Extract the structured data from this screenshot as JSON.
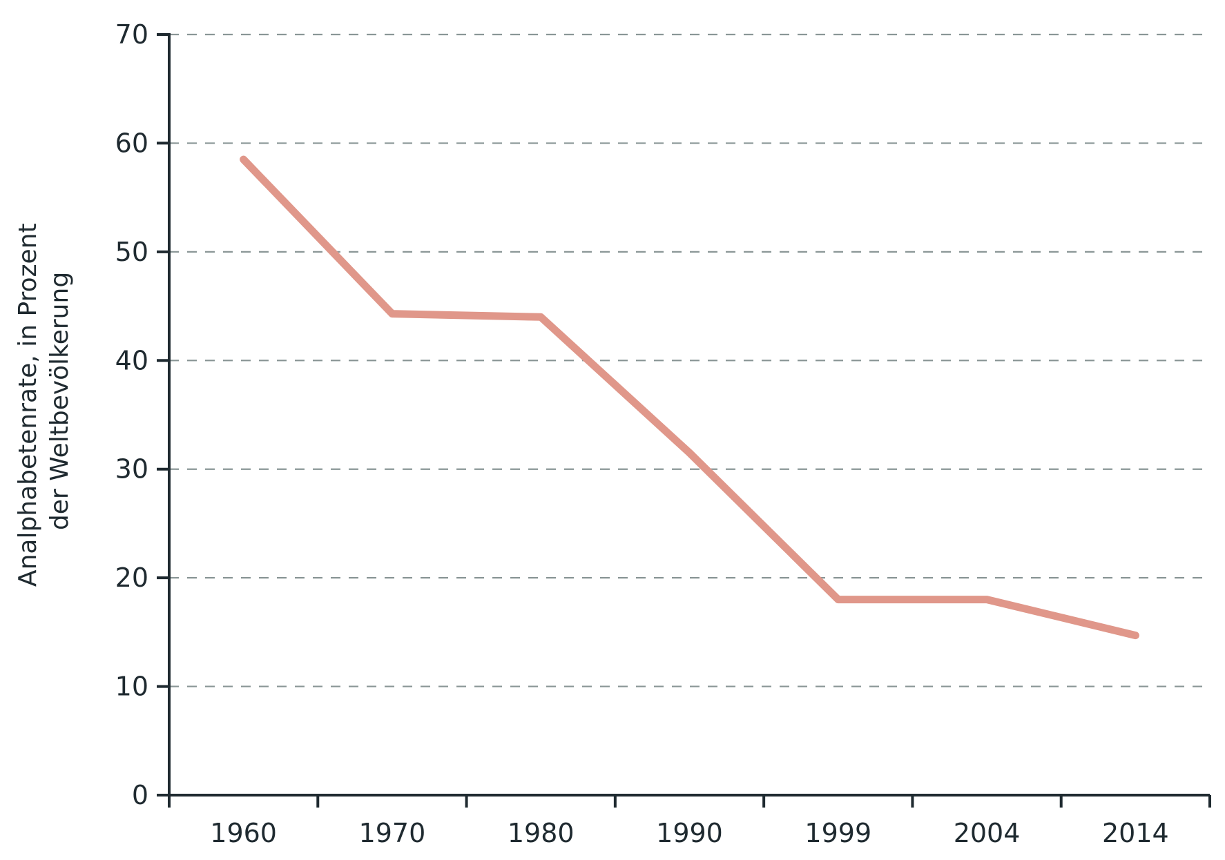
{
  "chart_data": {
    "type": "line",
    "title": "",
    "xlabel": "",
    "ylabel_lines": [
      "Analphabetenrate, in Prozent",
      "der Weltbevölkerung"
    ],
    "categories": [
      "1960",
      "1970",
      "1980",
      "1990",
      "1999",
      "2004",
      "2014"
    ],
    "series": [
      {
        "values": [
          58.5,
          44.3,
          44.0,
          31.5,
          18.0,
          18.0,
          14.7
        ]
      }
    ],
    "ylim": [
      0,
      70
    ],
    "yticks": [
      0,
      10,
      20,
      30,
      40,
      50,
      60,
      70
    ],
    "grid": true,
    "legend": "none",
    "colors": {
      "line": "#e0978a",
      "axis": "#1f2a30",
      "grid": "#8a9696"
    }
  }
}
